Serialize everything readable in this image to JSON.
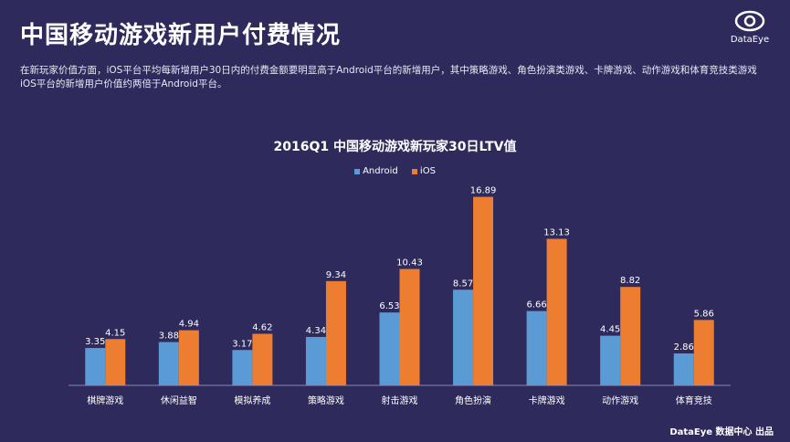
{
  "page": {
    "title": "中国移动游戏新用户付费情况",
    "description": "在新玩家价值方面，iOS平台平均每新增用户30日内的付费金额要明显高于Android平台的新增用户，其中策略游戏、角色扮演类游戏、卡牌游戏、动作游戏和体育竞技类游戏iOS平台的新增用户价值约两倍于Android平台。",
    "logo_text": "DataEye",
    "footer": "DataEye 数据中心 出品"
  },
  "colors": {
    "background": "#2e2a5c",
    "android": "#5b9bd5",
    "ios": "#ed7d31"
  },
  "chart_data": {
    "type": "bar",
    "title": "2016Q1 中国移动游戏新玩家30日LTV值",
    "categories": [
      "棋牌游戏",
      "休闲益智",
      "模拟养成",
      "策略游戏",
      "射击游戏",
      "角色扮演",
      "卡牌游戏",
      "动作游戏",
      "体育竞技"
    ],
    "series": [
      {
        "name": "Android",
        "values": [
          3.35,
          3.88,
          3.17,
          4.34,
          6.53,
          8.57,
          6.66,
          4.45,
          2.86
        ]
      },
      {
        "name": "iOS",
        "values": [
          4.15,
          4.94,
          4.62,
          9.34,
          10.43,
          16.89,
          13.13,
          8.82,
          5.86
        ]
      }
    ],
    "legend_position": "top-center",
    "ylim": [
      0,
      18
    ],
    "grid": false
  }
}
